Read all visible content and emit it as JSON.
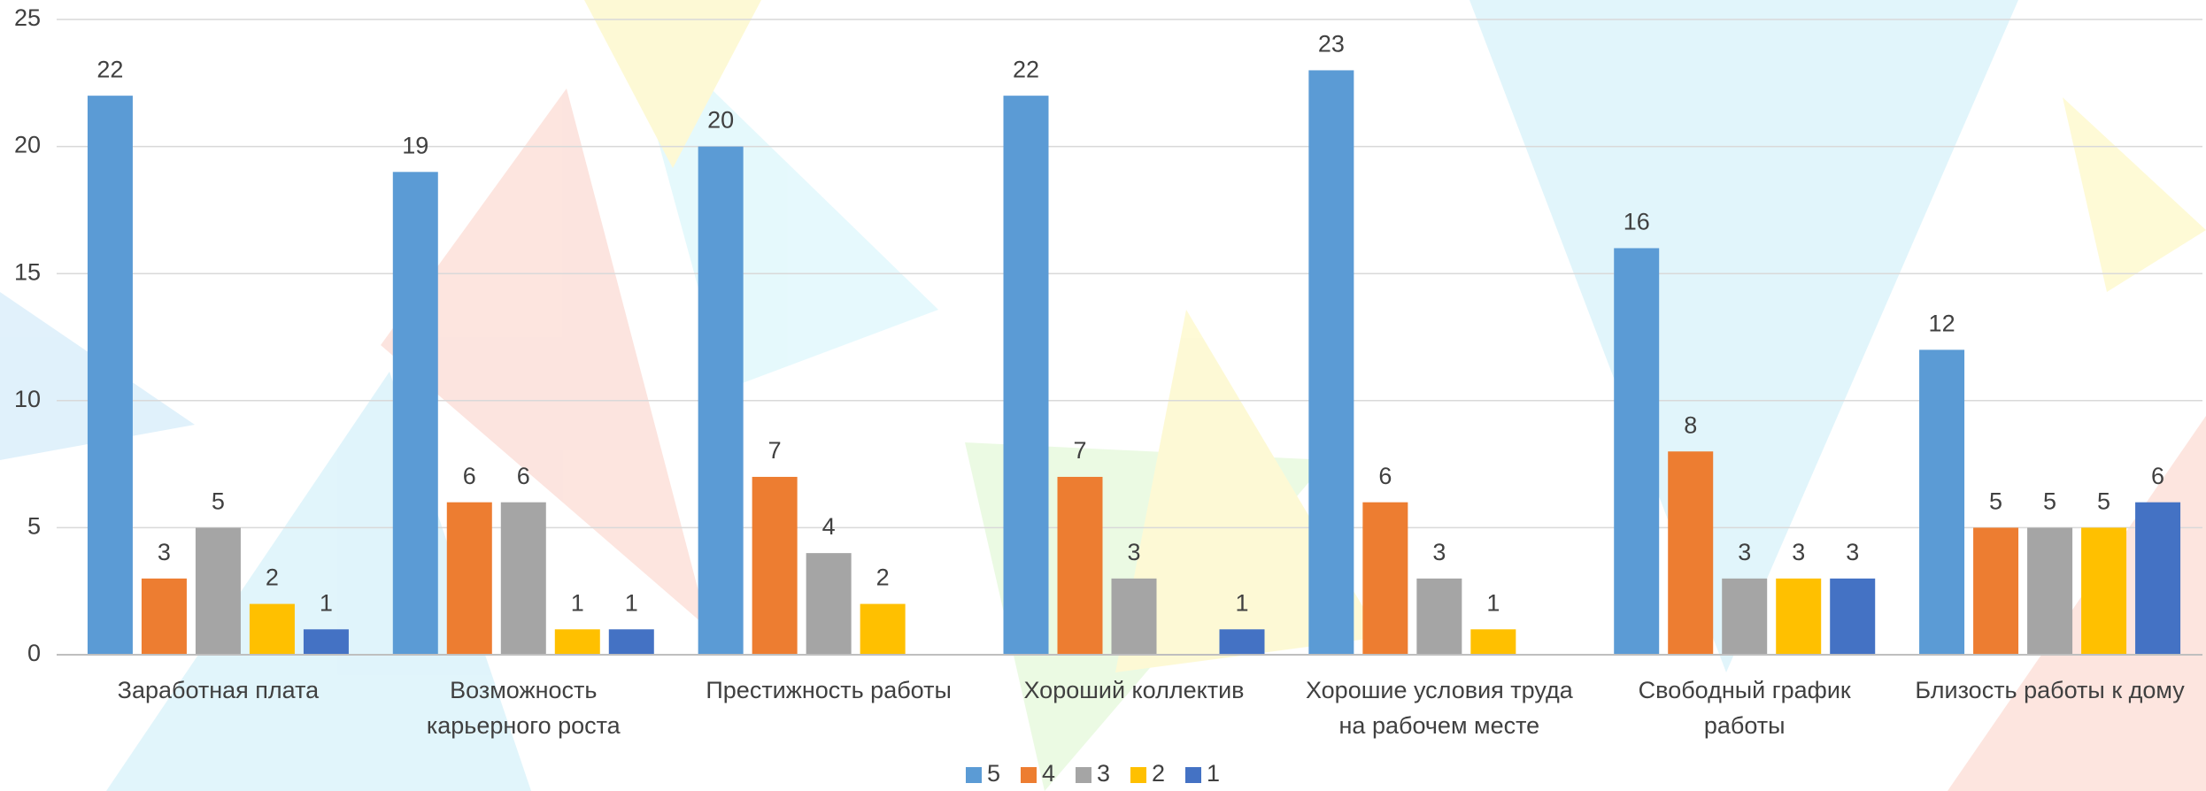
{
  "chart_data": {
    "type": "bar",
    "categories": [
      "Заработная плата",
      "Возможность карьерного роста",
      "Престижность работы",
      "Хороший коллектив",
      "Хорошие условия труда на рабочем месте",
      "Свободный график работы",
      "Близость работы к дому"
    ],
    "series": [
      {
        "name": "5",
        "color": "#5b9bd5",
        "values": [
          22,
          19,
          20,
          22,
          23,
          16,
          12
        ]
      },
      {
        "name": "4",
        "color": "#ed7d31",
        "values": [
          3,
          6,
          7,
          7,
          6,
          8,
          5
        ]
      },
      {
        "name": "3",
        "color": "#a5a5a5",
        "values": [
          5,
          6,
          4,
          3,
          3,
          3,
          5
        ]
      },
      {
        "name": "2",
        "color": "#ffc000",
        "values": [
          2,
          1,
          2,
          null,
          1,
          3,
          5
        ]
      },
      {
        "name": "1",
        "color": "#4472c4",
        "values": [
          1,
          1,
          null,
          1,
          null,
          3,
          6
        ]
      }
    ],
    "ylim": [
      0,
      25
    ],
    "yticks": [
      0,
      5,
      10,
      15,
      20,
      25
    ],
    "grid": true,
    "legend": "bottom"
  }
}
